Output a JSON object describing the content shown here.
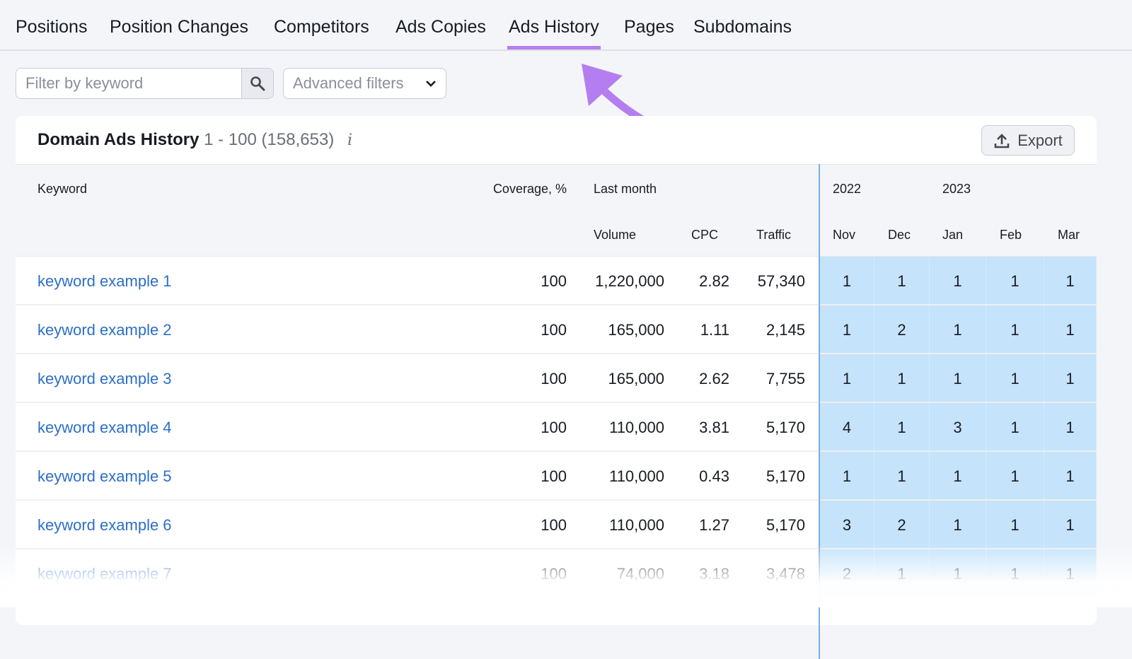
{
  "tabs": [
    "Positions",
    "Position Changes",
    "Competitors",
    "Ads Copies",
    "Ads History",
    "Pages",
    "Subdomains"
  ],
  "active_tab": "Ads History",
  "filter": {
    "placeholder": "Filter by keyword",
    "advanced_label": "Advanced filters"
  },
  "card": {
    "title": "Domain Ads History",
    "range": "1 - 100 (158,653)",
    "info_glyph": "i",
    "export_label": "Export"
  },
  "columns": {
    "keyword": "Keyword",
    "coverage": "Coverage, %",
    "last_month": "Last month",
    "volume": "Volume",
    "cpc": "CPC",
    "traffic": "Traffic",
    "years": [
      "2022",
      "2023"
    ],
    "months": [
      "Nov",
      "Dec",
      "Jan",
      "Feb",
      "Mar"
    ]
  },
  "rows": [
    {
      "keyword": "keyword example 1",
      "coverage": "100",
      "volume": "1,220,000",
      "cpc": "2.82",
      "traffic": "57,340",
      "history": [
        "1",
        "1",
        "1",
        "1",
        "1"
      ]
    },
    {
      "keyword": "keyword example 2",
      "coverage": "100",
      "volume": "165,000",
      "cpc": "1.11",
      "traffic": "2,145",
      "history": [
        "1",
        "2",
        "1",
        "1",
        "1"
      ]
    },
    {
      "keyword": "keyword example 3",
      "coverage": "100",
      "volume": "165,000",
      "cpc": "2.62",
      "traffic": "7,755",
      "history": [
        "1",
        "1",
        "1",
        "1",
        "1"
      ]
    },
    {
      "keyword": "keyword example 4",
      "coverage": "100",
      "volume": "110,000",
      "cpc": "3.81",
      "traffic": "5,170",
      "history": [
        "4",
        "1",
        "3",
        "1",
        "1"
      ]
    },
    {
      "keyword": "keyword example 5",
      "coverage": "100",
      "volume": "110,000",
      "cpc": "0.43",
      "traffic": "5,170",
      "history": [
        "1",
        "1",
        "1",
        "1",
        "1"
      ]
    },
    {
      "keyword": "keyword example 6",
      "coverage": "100",
      "volume": "110,000",
      "cpc": "1.27",
      "traffic": "5,170",
      "history": [
        "3",
        "2",
        "1",
        "1",
        "1"
      ]
    },
    {
      "keyword": "keyword example 7",
      "coverage": "100",
      "volume": "74,000",
      "cpc": "3.18",
      "traffic": "3,478",
      "history": [
        "2",
        "1",
        "1",
        "1",
        "1"
      ]
    }
  ],
  "colors": {
    "accent": "#b57ef0",
    "link": "#2b6fc7",
    "history_cell": "#c5e3fb"
  }
}
